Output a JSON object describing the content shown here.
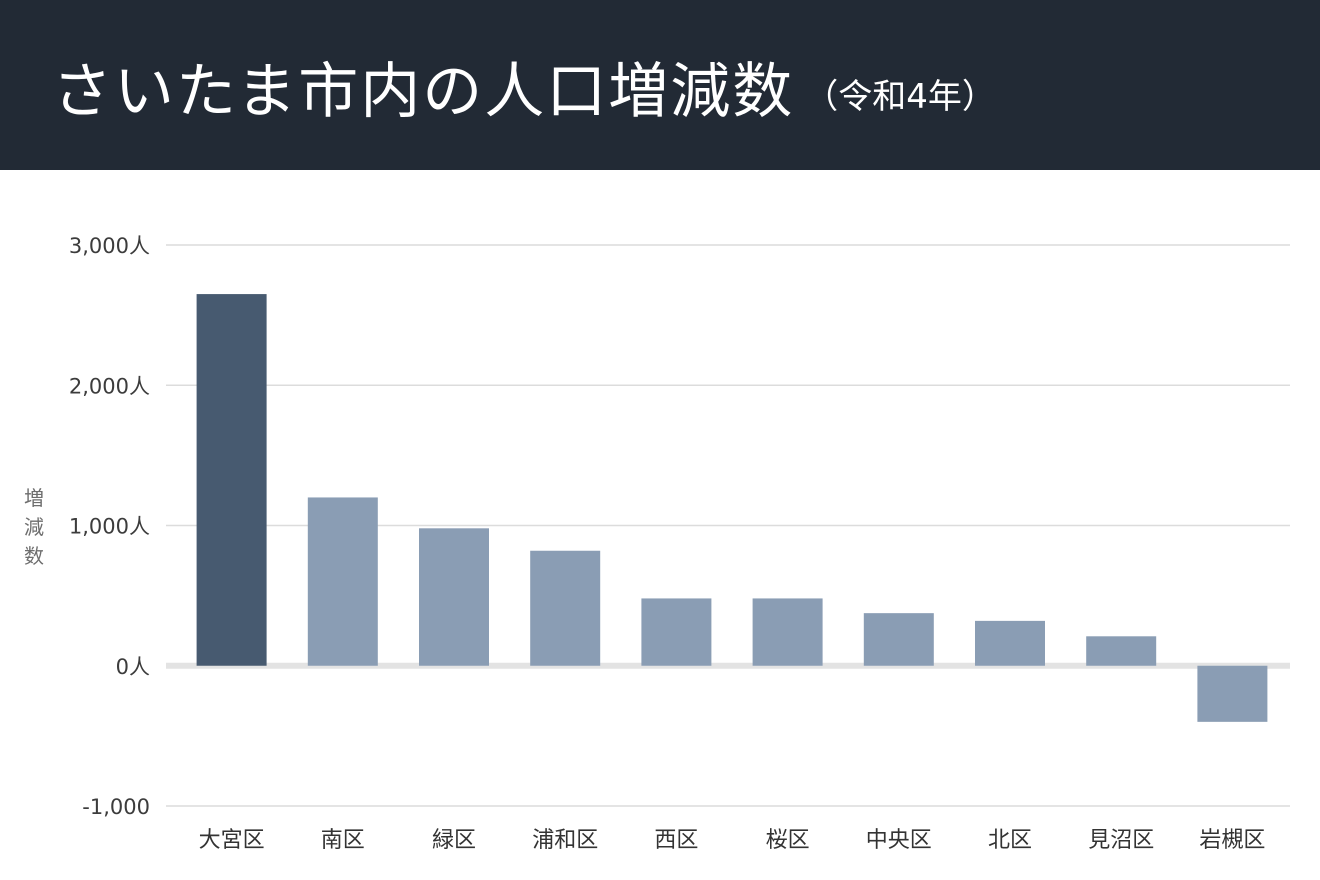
{
  "header": {
    "title": "さいたま市内の人口増減数",
    "subtitle": "（令和4年）"
  },
  "chart_data": {
    "type": "bar",
    "title": "さいたま市内の人口増減数",
    "subtitle": "（令和4年）",
    "ylabel": "増減数",
    "xlabel": "",
    "categories": [
      "大宮区",
      "南区",
      "緑区",
      "浦和区",
      "西区",
      "桜区",
      "中央区",
      "北区",
      "見沼区",
      "岩槻区"
    ],
    "values": [
      2650,
      1200,
      980,
      820,
      480,
      480,
      375,
      320,
      210,
      -400
    ],
    "ylim": [
      -1000,
      3000
    ],
    "yticks": [
      -1000,
      0,
      1000,
      2000,
      3000
    ],
    "ytick_labels": [
      "-1,000",
      "0人",
      "1,000人",
      "2,000人",
      "3,000人"
    ],
    "grid": true,
    "highlight_index": 0,
    "colors": {
      "highlight": "#475a70",
      "bar": "#8a9db4",
      "grid": "#dcdcdc",
      "zero_line": "#e3e3e3",
      "header_bg": "#222a35"
    }
  }
}
